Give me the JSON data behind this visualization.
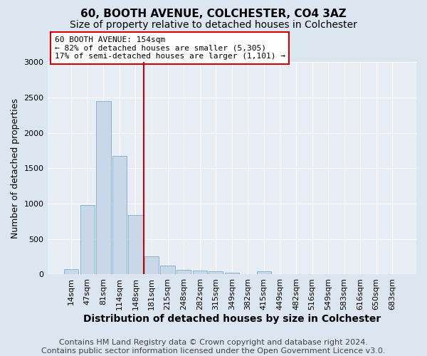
{
  "title1": "60, BOOTH AVENUE, COLCHESTER, CO4 3AZ",
  "title2": "Size of property relative to detached houses in Colchester",
  "xlabel": "Distribution of detached houses by size in Colchester",
  "ylabel": "Number of detached properties",
  "categories": [
    "14sqm",
    "47sqm",
    "81sqm",
    "114sqm",
    "148sqm",
    "181sqm",
    "215sqm",
    "248sqm",
    "282sqm",
    "315sqm",
    "349sqm",
    "382sqm",
    "415sqm",
    "449sqm",
    "482sqm",
    "516sqm",
    "549sqm",
    "583sqm",
    "616sqm",
    "650sqm",
    "683sqm"
  ],
  "values": [
    75,
    980,
    2450,
    1670,
    840,
    260,
    130,
    60,
    50,
    40,
    25,
    0,
    45,
    0,
    0,
    0,
    0,
    0,
    0,
    0,
    0
  ],
  "bar_color": "#c8d8e8",
  "bar_edge_color": "#7aaec8",
  "vline_pos": 4.5,
  "vline_color": "#cc0000",
  "annotation_text": "60 BOOTH AVENUE: 154sqm\n← 82% of detached houses are smaller (5,305)\n17% of semi-detached houses are larger (1,101) →",
  "annotation_box_facecolor": "white",
  "annotation_box_edgecolor": "#cc0000",
  "ylim": [
    0,
    3000
  ],
  "yticks": [
    0,
    500,
    1000,
    1500,
    2000,
    2500,
    3000
  ],
  "footer1": "Contains HM Land Registry data © Crown copyright and database right 2024.",
  "footer2": "Contains public sector information licensed under the Open Government Licence v3.0.",
  "bg_color": "#dce6f0",
  "plot_bg_color": "#e8eef5",
  "grid_color": "#ffffff",
  "title1_fontsize": 11,
  "title2_fontsize": 10,
  "xlabel_fontsize": 10,
  "ylabel_fontsize": 9,
  "tick_fontsize": 8,
  "ann_fontsize": 8,
  "footer_fontsize": 8
}
